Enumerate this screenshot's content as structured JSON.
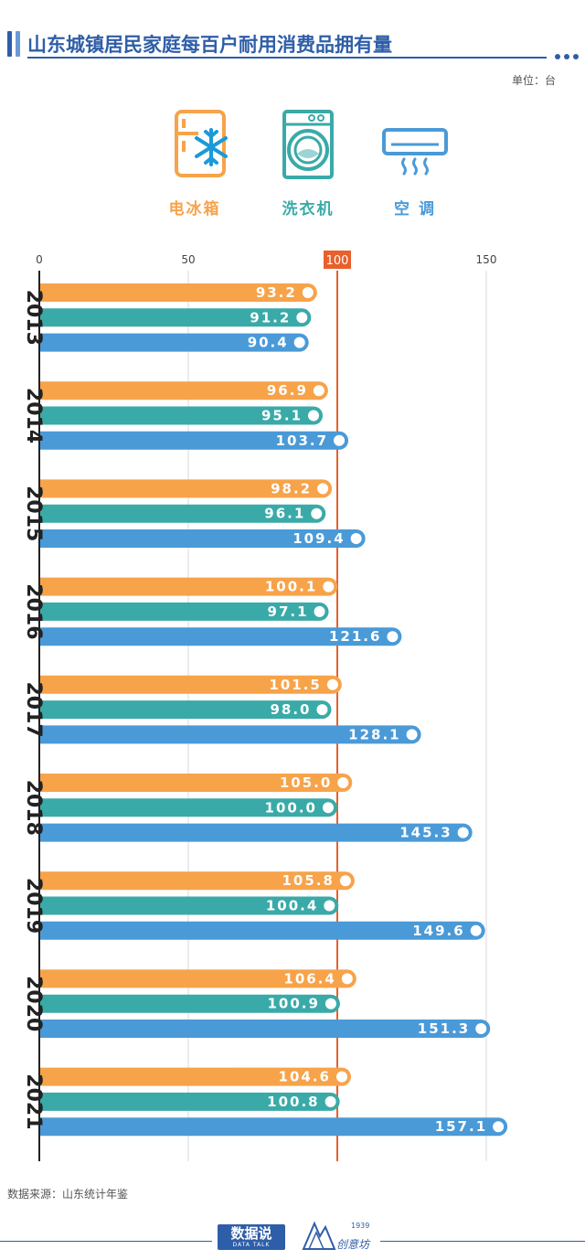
{
  "header": {
    "title": "山东城镇居民家庭每百户耐用消费品拥有量",
    "unit": "单位：台"
  },
  "legend": [
    {
      "label": "电冰箱",
      "icon": "refrigerator-icon",
      "color": "#f7a34a"
    },
    {
      "label": "洗衣机",
      "icon": "washing-machine-icon",
      "color": "#3aaaa8"
    },
    {
      "label": "空 调",
      "icon": "air-conditioner-icon",
      "color": "#4a9ad8"
    }
  ],
  "chart_data": {
    "type": "bar",
    "orientation": "horizontal",
    "title": "山东城镇居民家庭每百户耐用消费品拥有量",
    "unit": "台",
    "categories": [
      "2013",
      "2014",
      "2015",
      "2016",
      "2017",
      "2018",
      "2019",
      "2020",
      "2021"
    ],
    "series": [
      {
        "name": "电冰箱",
        "color": "#f7a34a",
        "values": [
          93.2,
          96.9,
          98.2,
          100.1,
          101.5,
          105.0,
          105.8,
          106.4,
          104.6
        ],
        "labels": [
          "93.2",
          "96.9",
          "98.2",
          "100.1",
          "101.5",
          "105.0",
          "105.8",
          "106.4",
          "104.6"
        ]
      },
      {
        "name": "洗衣机",
        "color": "#3aaaa8",
        "values": [
          91.2,
          95.1,
          96.1,
          97.1,
          98.0,
          100.0,
          100.4,
          100.9,
          100.8
        ],
        "labels": [
          "91.2",
          "95.1",
          "96.1",
          "97.1",
          "98.0",
          "100.0",
          "100.4",
          "100.9",
          "100.8"
        ]
      },
      {
        "name": "空 调",
        "color": "#4a9ad8",
        "values": [
          90.4,
          103.7,
          109.4,
          121.6,
          128.1,
          145.3,
          149.6,
          151.3,
          157.1
        ],
        "labels": [
          "90.4",
          "103.7",
          "109.4",
          "121.6",
          "128.1",
          "145.3",
          "149.6",
          "151.3",
          "157.1"
        ]
      }
    ],
    "x_ticks": [
      "0",
      "50",
      "100",
      "150"
    ],
    "x_tick_values": [
      0,
      50,
      100,
      150
    ],
    "reference_value": 100,
    "reference_color": "#e8602c",
    "xlim": [
      0,
      150
    ]
  },
  "source": "数据来源：山东统计年鉴",
  "footer": {
    "brand_main": "数据说",
    "brand_sub": "DATA TALK",
    "partner_name": "创意坊",
    "partner_year": "1939"
  }
}
